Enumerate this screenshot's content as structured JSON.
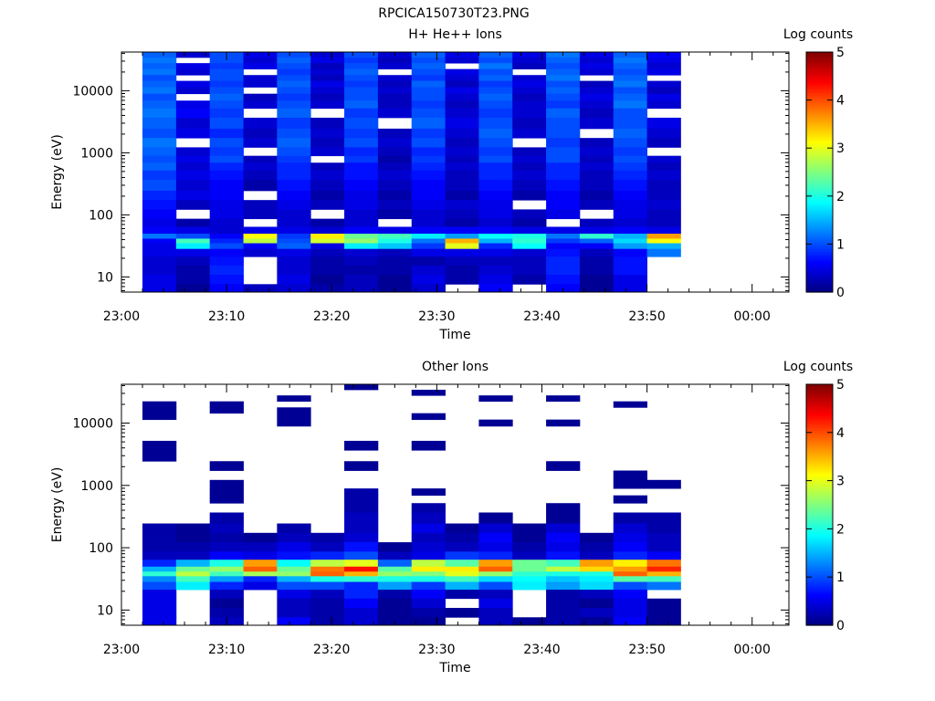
{
  "figure_title": "RPCICA150730T23.PNG",
  "chart_data": [
    {
      "type": "heatmap",
      "title": "H+ He++ Ions",
      "xlabel": "Time",
      "ylabel": "Energy (eV)",
      "x_tick_labels": [
        "23:00",
        "23:10",
        "23:20",
        "23:30",
        "23:40",
        "23:50",
        "00:00"
      ],
      "x_range_minutes": [
        0,
        63.5
      ],
      "y_scale": "log",
      "y_range": [
        5.7,
        42000
      ],
      "y_ticks": [
        10,
        100,
        1000,
        10000
      ],
      "y_tick_labels": [
        "10",
        "100",
        "1000",
        "10000"
      ],
      "colorbar": {
        "title": "Log counts",
        "range": [
          0,
          5
        ],
        "tick_labels": [
          "0",
          "1",
          "2",
          "3",
          "4",
          "5"
        ],
        "colormap": "jet"
      },
      "sweep_start_minutes": [
        2,
        5.2,
        8.4,
        11.6,
        14.8,
        18,
        21.2,
        24.4,
        27.6,
        30.8,
        34,
        37.2,
        40.4,
        43.6,
        46.8,
        50
      ],
      "sweep_width_minutes": 3.2,
      "energy_bins_eV": [
        38000,
        31000,
        25000,
        20000,
        16000,
        13000,
        10000,
        8000,
        6000,
        4500,
        3000,
        2000,
        1500,
        1000,
        800,
        600,
        450,
        300,
        200,
        150,
        100,
        75,
        55,
        45,
        38,
        32,
        25,
        18,
        13,
        9,
        6.5
      ],
      "log_counts_by_sweep": [
        [
          1.1,
          1.2,
          1.1,
          1.2,
          1.0,
          1.1,
          1.2,
          1.0,
          1.1,
          1.2,
          1.1,
          1.0,
          1.2,
          1.1,
          1.0,
          1.1,
          0.9,
          1.0,
          0.8,
          0.7,
          0.6,
          0.5,
          0.6,
          1.2,
          0.6,
          0.5,
          0.5,
          0.4,
          0.4,
          0.5,
          0.5
        ],
        [
          0.4,
          null,
          0.5,
          0.4,
          null,
          0.5,
          0.4,
          null,
          0.5,
          0.6,
          0.4,
          0.5,
          null,
          0.4,
          0.5,
          0.4,
          0.5,
          0.4,
          0.5,
          0.3,
          null,
          0.2,
          0.5,
          1.0,
          2.2,
          1.8,
          0.5,
          0.3,
          0.2,
          0.2,
          0.1
        ],
        [
          1.0,
          1.0,
          0.9,
          1.0,
          1.0,
          0.9,
          1.0,
          1.1,
          1.0,
          0.9,
          1.0,
          0.8,
          1.0,
          0.9,
          1.0,
          0.8,
          0.7,
          0.6,
          0.6,
          0.5,
          0.5,
          0.4,
          0.4,
          0.6,
          0.8,
          1.0,
          0.6,
          0.7,
          0.8,
          0.7,
          0.6
        ],
        [
          0.5,
          0.4,
          0.5,
          null,
          0.4,
          0.4,
          null,
          0.3,
          0.4,
          null,
          0.4,
          0.3,
          0.4,
          null,
          0.3,
          0.4,
          0.3,
          0.2,
          null,
          0.3,
          0.3,
          null,
          0.5,
          3.1,
          2.8,
          0.6,
          0.4,
          null,
          null,
          null,
          0.3
        ],
        [
          1.0,
          1.1,
          1.0,
          0.9,
          1.0,
          1.1,
          1.0,
          0.9,
          1.0,
          1.1,
          0.9,
          1.0,
          1.1,
          1.0,
          0.9,
          0.8,
          0.8,
          0.7,
          0.6,
          0.5,
          0.4,
          0.4,
          0.5,
          0.9,
          1.0,
          1.1,
          0.5,
          0.4,
          0.4,
          0.5,
          0.4
        ],
        [
          0.4,
          0.5,
          0.3,
          0.4,
          0.3,
          0.5,
          0.4,
          0.3,
          0.4,
          null,
          0.3,
          0.4,
          0.3,
          0.4,
          null,
          0.3,
          0.4,
          0.3,
          0.2,
          0.3,
          null,
          0.2,
          0.4,
          3.2,
          2.9,
          0.5,
          0.3,
          0.2,
          0.2,
          0.1,
          0.2
        ],
        [
          1.0,
          0.9,
          1.0,
          1.1,
          1.0,
          0.9,
          1.0,
          1.0,
          1.1,
          0.9,
          1.0,
          0.9,
          1.0,
          0.8,
          0.9,
          0.7,
          0.7,
          0.6,
          0.5,
          0.5,
          0.4,
          0.4,
          0.6,
          2.4,
          2.6,
          1.8,
          0.4,
          0.3,
          0.2,
          0.3,
          0.3
        ],
        [
          0.4,
          0.3,
          0.4,
          null,
          0.4,
          0.3,
          0.4,
          0.3,
          0.3,
          0.4,
          null,
          0.3,
          0.4,
          0.3,
          0.2,
          0.3,
          0.4,
          0.3,
          0.2,
          0.3,
          0.2,
          null,
          0.5,
          2.2,
          2.0,
          1.6,
          0.3,
          0.2,
          0.2,
          0.1,
          0.1
        ],
        [
          1.1,
          1.0,
          1.1,
          1.0,
          0.9,
          1.1,
          1.0,
          1.0,
          0.9,
          1.0,
          1.1,
          0.9,
          1.0,
          0.8,
          0.9,
          0.8,
          0.7,
          0.6,
          0.6,
          0.5,
          0.4,
          0.4,
          0.6,
          1.8,
          1.2,
          0.9,
          0.5,
          0.2,
          0.4,
          0.5,
          0.4
        ],
        [
          0.5,
          0.4,
          null,
          0.5,
          0.4,
          0.3,
          0.5,
          0.4,
          0.3,
          0.4,
          0.5,
          0.4,
          0.3,
          0.4,
          0.3,
          0.4,
          0.3,
          0.3,
          0.2,
          0.4,
          0.3,
          0.2,
          0.6,
          1.4,
          3.5,
          3.0,
          0.5,
          0.3,
          0.2,
          0.2,
          null
        ],
        [
          1.1,
          1.0,
          1.2,
          1.0,
          1.1,
          0.9,
          1.0,
          1.1,
          1.0,
          0.9,
          1.0,
          1.1,
          1.0,
          0.9,
          1.0,
          0.8,
          0.8,
          0.7,
          0.6,
          0.5,
          0.5,
          0.4,
          0.6,
          1.9,
          1.5,
          0.8,
          0.5,
          0.3,
          0.4,
          0.5,
          0.6
        ],
        [
          0.5,
          0.4,
          0.3,
          null,
          0.4,
          0.5,
          0.4,
          0.3,
          0.4,
          0.4,
          0.3,
          0.4,
          null,
          0.3,
          0.4,
          0.3,
          0.4,
          0.3,
          0.2,
          null,
          0.3,
          0.2,
          0.5,
          2.0,
          2.1,
          1.9,
          0.4,
          0.3,
          0.3,
          0.2,
          null
        ],
        [
          1.2,
          1.1,
          1.0,
          1.1,
          1.2,
          1.0,
          1.1,
          1.0,
          0.9,
          1.1,
          1.0,
          1.0,
          0.9,
          1.0,
          1.0,
          0.8,
          0.8,
          0.7,
          0.6,
          0.6,
          0.5,
          null,
          0.5,
          1.2,
          0.9,
          0.6,
          0.7,
          0.8,
          0.8,
          0.7,
          0.6
        ],
        [
          0.5,
          0.4,
          0.5,
          0.4,
          null,
          0.3,
          0.4,
          0.5,
          0.4,
          0.3,
          0.4,
          null,
          0.3,
          0.4,
          0.3,
          0.4,
          0.3,
          0.3,
          0.2,
          0.3,
          null,
          0.3,
          0.5,
          2.1,
          1.1,
          0.6,
          0.3,
          0.2,
          0.2,
          0.1,
          0.1
        ],
        [
          1.1,
          1.2,
          1.1,
          1.0,
          1.1,
          1.2,
          1.0,
          1.1,
          1.2,
          1.0,
          1.0,
          1.1,
          1.0,
          0.9,
          1.0,
          0.9,
          0.8,
          0.7,
          0.6,
          0.5,
          0.5,
          0.4,
          0.6,
          1.5,
          1.7,
          1.4,
          0.6,
          0.7,
          0.7,
          0.5,
          0.5
        ],
        [
          0.6,
          0.5,
          0.4,
          0.5,
          null,
          0.4,
          0.3,
          0.5,
          0.4,
          null,
          0.5,
          0.4,
          0.3,
          null,
          0.4,
          0.3,
          0.4,
          0.3,
          0.3,
          0.4,
          0.3,
          0.3,
          0.5,
          3.6,
          3.1,
          1.5,
          1.2,
          null,
          null,
          null,
          null
        ]
      ]
    },
    {
      "type": "heatmap",
      "title": "Other Ions",
      "xlabel": "Time",
      "ylabel": "Energy (eV)",
      "x_tick_labels": [
        "23:00",
        "23:10",
        "23:20",
        "23:30",
        "23:40",
        "23:50",
        "00:00"
      ],
      "x_range_minutes": [
        0,
        63.5
      ],
      "y_scale": "log",
      "y_range": [
        5.7,
        42000
      ],
      "y_ticks": [
        10,
        100,
        1000,
        10000
      ],
      "y_tick_labels": [
        "10",
        "100",
        "1000",
        "10000"
      ],
      "colorbar": {
        "title": "Log counts",
        "range": [
          0,
          5
        ],
        "tick_labels": [
          "0",
          "1",
          "2",
          "3",
          "4",
          "5"
        ],
        "colormap": "jet"
      },
      "sweep_start_minutes": [
        2,
        5.2,
        8.4,
        11.6,
        14.8,
        18,
        21.2,
        24.4,
        27.6,
        30.8,
        34,
        37.2,
        40.4,
        43.6,
        46.8,
        50
      ],
      "sweep_width_minutes": 3.2,
      "energy_bins_eV": [
        38000,
        31000,
        25000,
        20000,
        16000,
        13000,
        10000,
        8000,
        6000,
        4500,
        3000,
        2000,
        1500,
        1000,
        800,
        600,
        450,
        300,
        200,
        150,
        100,
        75,
        55,
        45,
        38,
        32,
        25,
        18,
        13,
        9,
        6.5
      ],
      "log_counts_by_sweep": [
        [
          null,
          null,
          null,
          0.1,
          0.1,
          0.1,
          null,
          null,
          null,
          0.1,
          0.1,
          null,
          null,
          null,
          null,
          null,
          null,
          null,
          0.2,
          0.2,
          0.2,
          0.3,
          0.8,
          1.5,
          2.1,
          1.3,
          1.0,
          0.5,
          0.5,
          0.5,
          0.5
        ],
        [
          null,
          null,
          null,
          null,
          null,
          null,
          null,
          null,
          null,
          null,
          null,
          null,
          null,
          null,
          null,
          null,
          null,
          null,
          0.1,
          0.1,
          0.2,
          0.3,
          1.5,
          2.4,
          2.8,
          2.2,
          1.8,
          null,
          null,
          null,
          null
        ],
        [
          null,
          null,
          null,
          0.1,
          0.1,
          null,
          null,
          null,
          null,
          null,
          null,
          0.1,
          null,
          0.1,
          0.1,
          0.1,
          null,
          0.2,
          0.3,
          0.2,
          0.3,
          0.6,
          2.0,
          2.6,
          2.2,
          1.4,
          0.8,
          0.3,
          0.1,
          0.2,
          0.3
        ],
        [
          null,
          null,
          null,
          null,
          null,
          null,
          null,
          null,
          null,
          null,
          null,
          null,
          null,
          null,
          null,
          null,
          null,
          null,
          null,
          0.1,
          0.3,
          0.5,
          3.6,
          3.9,
          2.7,
          0.8,
          0.5,
          null,
          null,
          null,
          null
        ],
        [
          null,
          null,
          0.1,
          null,
          0.1,
          0.1,
          0.1,
          null,
          null,
          null,
          null,
          null,
          null,
          null,
          null,
          null,
          null,
          null,
          0.2,
          0.3,
          0.5,
          0.7,
          1.9,
          2.4,
          2.6,
          1.5,
          1.0,
          0.5,
          0.3,
          0.3,
          0.6
        ],
        [
          null,
          null,
          null,
          null,
          null,
          null,
          null,
          null,
          null,
          null,
          null,
          null,
          null,
          null,
          null,
          null,
          null,
          null,
          null,
          0.2,
          0.3,
          0.8,
          2.8,
          3.8,
          3.9,
          2.0,
          1.0,
          0.3,
          0.2,
          0.2,
          0.2
        ],
        [
          0.1,
          null,
          null,
          null,
          null,
          null,
          null,
          null,
          null,
          0.1,
          null,
          0.1,
          null,
          null,
          0.2,
          0.2,
          0.2,
          0.3,
          0.3,
          0.4,
          0.7,
          1.0,
          3.0,
          4.3,
          3.5,
          2.1,
          0.8,
          0.8,
          0.6,
          0.4,
          0.4
        ],
        [
          null,
          null,
          null,
          null,
          null,
          null,
          null,
          null,
          null,
          null,
          null,
          null,
          null,
          null,
          null,
          null,
          null,
          null,
          null,
          null,
          0.1,
          0.3,
          1.1,
          2.3,
          2.6,
          2.0,
          1.4,
          0.2,
          0.1,
          0.1,
          0.1
        ],
        [
          null,
          0.1,
          null,
          null,
          null,
          0.1,
          null,
          null,
          null,
          0.1,
          null,
          null,
          null,
          null,
          0.1,
          null,
          0.2,
          0.3,
          0.5,
          0.3,
          0.4,
          0.5,
          2.8,
          3.2,
          2.5,
          2.0,
          0.9,
          0.6,
          0.4,
          0.2,
          0.1
        ],
        [
          null,
          null,
          null,
          null,
          null,
          null,
          null,
          null,
          null,
          null,
          null,
          null,
          null,
          null,
          null,
          null,
          null,
          null,
          0.1,
          0.2,
          0.3,
          0.9,
          2.3,
          3.2,
          3.0,
          2.2,
          1.5,
          0.2,
          null,
          0.1,
          null
        ],
        [
          null,
          null,
          0.1,
          null,
          null,
          null,
          0.1,
          null,
          null,
          null,
          null,
          null,
          null,
          null,
          null,
          null,
          null,
          0.1,
          0.4,
          0.6,
          0.5,
          0.8,
          3.6,
          3.9,
          2.6,
          1.7,
          1.0,
          0.3,
          0.5,
          0.3,
          0.3
        ],
        [
          null,
          null,
          null,
          null,
          null,
          null,
          null,
          null,
          null,
          null,
          null,
          null,
          null,
          null,
          null,
          null,
          null,
          null,
          0.1,
          0.1,
          0.2,
          0.3,
          2.4,
          2.4,
          2.1,
          1.9,
          1.8,
          null,
          null,
          null,
          0.1
        ],
        [
          null,
          null,
          0.1,
          null,
          null,
          null,
          0.1,
          null,
          null,
          null,
          null,
          0.1,
          null,
          null,
          null,
          null,
          0.1,
          0.1,
          0.4,
          0.6,
          0.5,
          0.7,
          2.2,
          2.8,
          2.0,
          1.6,
          1.4,
          0.2,
          0.2,
          0.2,
          0.2
        ],
        [
          null,
          null,
          null,
          null,
          null,
          null,
          null,
          null,
          null,
          null,
          null,
          null,
          null,
          null,
          null,
          null,
          null,
          null,
          null,
          0.1,
          0.2,
          0.3,
          3.6,
          3.3,
          2.0,
          1.8,
          1.7,
          0.3,
          0.1,
          0.3,
          0.1
        ],
        [
          null,
          null,
          null,
          0.1,
          null,
          null,
          null,
          null,
          null,
          null,
          null,
          null,
          0.1,
          0.1,
          null,
          0.1,
          null,
          0.2,
          0.4,
          0.5,
          0.6,
          0.8,
          3.2,
          3.6,
          3.9,
          2.3,
          1.0,
          0.6,
          0.5,
          0.5,
          0.6
        ],
        [
          null,
          null,
          null,
          null,
          null,
          null,
          null,
          null,
          null,
          null,
          null,
          null,
          null,
          0.1,
          null,
          null,
          null,
          0.2,
          0.2,
          0.3,
          0.3,
          0.6,
          3.8,
          4.2,
          3.5,
          2.2,
          1.2,
          null,
          0.1,
          0.1,
          0.1
        ]
      ]
    }
  ]
}
